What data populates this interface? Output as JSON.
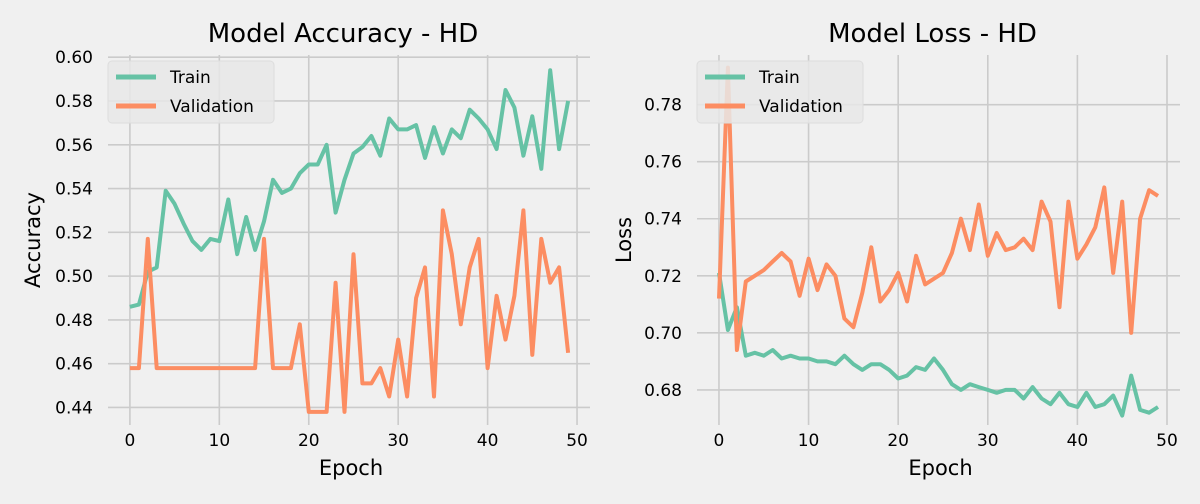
{
  "colors": {
    "background": "#f0f0f0",
    "grid": "#cbcbcb",
    "train": "#66c2a5",
    "validation": "#fc8d62",
    "text": "#000000",
    "legend_bg": "#e8e8e8"
  },
  "chart_data": [
    {
      "type": "line",
      "title": "Model Accuracy - HD",
      "xlabel": "Epoch",
      "ylabel": "Accuracy",
      "xlim": [
        -2.45,
        51.45
      ],
      "ylim": [
        0.432,
        0.601
      ],
      "xticks": [
        0,
        10,
        20,
        30,
        40,
        50
      ],
      "yticks": [
        0.44,
        0.46,
        0.48,
        0.5,
        0.52,
        0.54,
        0.56,
        0.58,
        0.6
      ],
      "grid": true,
      "legend_position": "upper left",
      "x": [
        0,
        1,
        2,
        3,
        4,
        5,
        6,
        7,
        8,
        9,
        10,
        11,
        12,
        13,
        14,
        15,
        16,
        17,
        18,
        19,
        20,
        21,
        22,
        23,
        24,
        25,
        26,
        27,
        28,
        29,
        30,
        31,
        32,
        33,
        34,
        35,
        36,
        37,
        38,
        39,
        40,
        41,
        42,
        43,
        44,
        45,
        46,
        47,
        48,
        49
      ],
      "series": [
        {
          "name": "Train",
          "color": "#66c2a5",
          "values": [
            0.486,
            0.487,
            0.502,
            0.504,
            0.539,
            0.533,
            0.524,
            0.516,
            0.512,
            0.517,
            0.516,
            0.535,
            0.51,
            0.527,
            0.512,
            0.525,
            0.544,
            0.538,
            0.54,
            0.547,
            0.551,
            0.551,
            0.56,
            0.529,
            0.544,
            0.556,
            0.559,
            0.564,
            0.555,
            0.572,
            0.567,
            0.567,
            0.569,
            0.554,
            0.568,
            0.556,
            0.567,
            0.563,
            0.576,
            0.572,
            0.567,
            0.558,
            0.585,
            0.577,
            0.555,
            0.573,
            0.549,
            0.594,
            0.558,
            0.58
          ]
        },
        {
          "name": "Validation",
          "color": "#fc8d62",
          "values": [
            0.458,
            0.458,
            0.517,
            0.458,
            0.458,
            0.458,
            0.458,
            0.458,
            0.458,
            0.458,
            0.458,
            0.458,
            0.458,
            0.458,
            0.458,
            0.517,
            0.458,
            0.458,
            0.458,
            0.478,
            0.438,
            0.438,
            0.438,
            0.497,
            0.438,
            0.51,
            0.451,
            0.451,
            0.458,
            0.445,
            0.471,
            0.445,
            0.49,
            0.504,
            0.445,
            0.53,
            0.51,
            0.478,
            0.504,
            0.517,
            0.458,
            0.491,
            0.471,
            0.491,
            0.53,
            0.464,
            0.517,
            0.497,
            0.504,
            0.465
          ]
        }
      ]
    },
    {
      "type": "line",
      "title": "Model Loss - HD",
      "xlabel": "Epoch",
      "ylabel": "Loss",
      "xlim": [
        -2.45,
        51.45
      ],
      "ylim": [
        0.6677,
        0.7974
      ],
      "xticks": [
        0,
        10,
        20,
        30,
        40,
        50
      ],
      "yticks": [
        0.68,
        0.7,
        0.72,
        0.74,
        0.76,
        0.78
      ],
      "grid": true,
      "legend_position": "upper left",
      "x": [
        0,
        1,
        2,
        3,
        4,
        5,
        6,
        7,
        8,
        9,
        10,
        11,
        12,
        13,
        14,
        15,
        16,
        17,
        18,
        19,
        20,
        21,
        22,
        23,
        24,
        25,
        26,
        27,
        28,
        29,
        30,
        31,
        32,
        33,
        34,
        35,
        36,
        37,
        38,
        39,
        40,
        41,
        42,
        43,
        44,
        45,
        46,
        47,
        48,
        49
      ],
      "series": [
        {
          "name": "Train",
          "color": "#66c2a5",
          "values": [
            0.721,
            0.701,
            0.709,
            0.692,
            0.693,
            0.692,
            0.694,
            0.691,
            0.692,
            0.691,
            0.691,
            0.69,
            0.69,
            0.689,
            0.692,
            0.689,
            0.687,
            0.689,
            0.689,
            0.687,
            0.684,
            0.685,
            0.688,
            0.687,
            0.691,
            0.687,
            0.682,
            0.68,
            0.682,
            0.681,
            0.68,
            0.679,
            0.68,
            0.68,
            0.677,
            0.681,
            0.677,
            0.675,
            0.679,
            0.675,
            0.674,
            0.679,
            0.674,
            0.675,
            0.678,
            0.671,
            0.685,
            0.673,
            0.672,
            0.674
          ]
        },
        {
          "name": "Validation",
          "color": "#fc8d62",
          "values": [
            0.712,
            0.793,
            0.694,
            0.718,
            0.72,
            0.722,
            0.725,
            0.728,
            0.725,
            0.713,
            0.726,
            0.715,
            0.724,
            0.72,
            0.705,
            0.702,
            0.714,
            0.73,
            0.711,
            0.715,
            0.721,
            0.711,
            0.727,
            0.717,
            0.719,
            0.721,
            0.728,
            0.74,
            0.729,
            0.745,
            0.727,
            0.735,
            0.729,
            0.73,
            0.733,
            0.729,
            0.746,
            0.739,
            0.709,
            0.746,
            0.726,
            0.731,
            0.737,
            0.751,
            0.721,
            0.746,
            0.7,
            0.74,
            0.75,
            0.748
          ]
        }
      ]
    }
  ]
}
